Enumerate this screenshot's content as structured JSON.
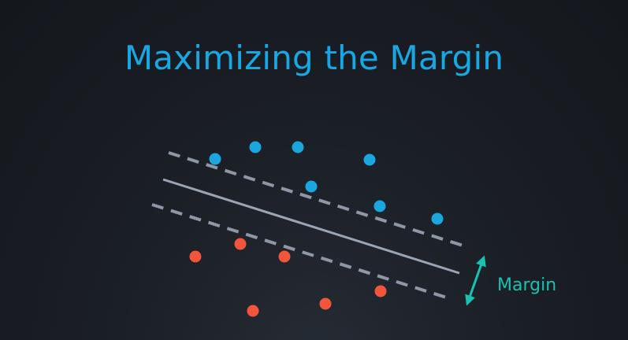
{
  "slide": {
    "title": "Maximizing the Margin",
    "margin_label": "Margin"
  },
  "colors": {
    "title": "#17a8e3",
    "class_a_points": "#1aa7e0",
    "class_b_points": "#f2553b",
    "decision_line": "#9aa5b4",
    "margin_lines": "#8d97a6",
    "margin_arrow": "#19c2b0"
  }
}
